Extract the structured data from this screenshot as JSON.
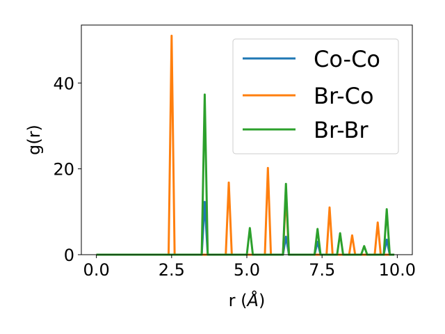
{
  "chart_data": {
    "type": "line",
    "xlabel_main": "r (",
    "xlabel_italic": "Å",
    "xlabel_close": ")",
    "ylabel": "g(r)",
    "xlim": [
      -0.5,
      10.5
    ],
    "ylim": [
      0,
      53.5
    ],
    "xticks": [
      0.0,
      2.5,
      5.0,
      7.5,
      10.0
    ],
    "xtick_labels": [
      "0.0",
      "2.5",
      "5.0",
      "7.5",
      "10.0"
    ],
    "yticks": [
      0,
      20,
      40
    ],
    "ytick_labels": [
      "0",
      "20",
      "40"
    ],
    "grid": false,
    "legend_position": "upper-right",
    "series": [
      {
        "name": "Co-Co",
        "color": "#1f77b4",
        "points": [
          [
            0.0,
            0
          ],
          [
            3.5,
            0
          ],
          [
            3.6,
            12.3
          ],
          [
            3.7,
            0
          ],
          [
            6.2,
            0
          ],
          [
            6.3,
            4.2
          ],
          [
            6.4,
            0
          ],
          [
            7.25,
            0
          ],
          [
            7.35,
            3.0
          ],
          [
            7.45,
            0
          ],
          [
            9.55,
            0
          ],
          [
            9.65,
            3.5
          ],
          [
            9.75,
            0
          ],
          [
            9.9,
            0
          ]
        ]
      },
      {
        "name": "Br-Co",
        "color": "#ff7f0e",
        "points": [
          [
            0.0,
            0
          ],
          [
            2.4,
            0
          ],
          [
            2.5,
            51.0
          ],
          [
            2.6,
            0
          ],
          [
            4.3,
            0
          ],
          [
            4.4,
            16.8
          ],
          [
            4.5,
            0
          ],
          [
            5.6,
            0
          ],
          [
            5.7,
            20.2
          ],
          [
            5.8,
            0
          ],
          [
            6.2,
            0
          ],
          [
            6.3,
            14.0
          ],
          [
            6.4,
            0
          ],
          [
            7.65,
            0
          ],
          [
            7.75,
            11.0
          ],
          [
            7.85,
            0
          ],
          [
            8.4,
            0
          ],
          [
            8.5,
            4.5
          ],
          [
            8.6,
            0
          ],
          [
            9.25,
            0
          ],
          [
            9.35,
            7.5
          ],
          [
            9.45,
            0
          ],
          [
            9.9,
            0
          ]
        ]
      },
      {
        "name": "Br-Br",
        "color": "#2ca02c",
        "points": [
          [
            0.0,
            0
          ],
          [
            3.5,
            0
          ],
          [
            3.6,
            37.3
          ],
          [
            3.7,
            0
          ],
          [
            5.0,
            0
          ],
          [
            5.1,
            6.2
          ],
          [
            5.2,
            0
          ],
          [
            6.2,
            0
          ],
          [
            6.3,
            16.5
          ],
          [
            6.4,
            0
          ],
          [
            7.25,
            0
          ],
          [
            7.35,
            6.0
          ],
          [
            7.45,
            0
          ],
          [
            8.0,
            0
          ],
          [
            8.1,
            5.0
          ],
          [
            8.2,
            0
          ],
          [
            8.8,
            0
          ],
          [
            8.9,
            2.0
          ],
          [
            9.0,
            0
          ],
          [
            9.55,
            0
          ],
          [
            9.65,
            10.6
          ],
          [
            9.75,
            0
          ],
          [
            9.9,
            0
          ]
        ]
      }
    ]
  }
}
